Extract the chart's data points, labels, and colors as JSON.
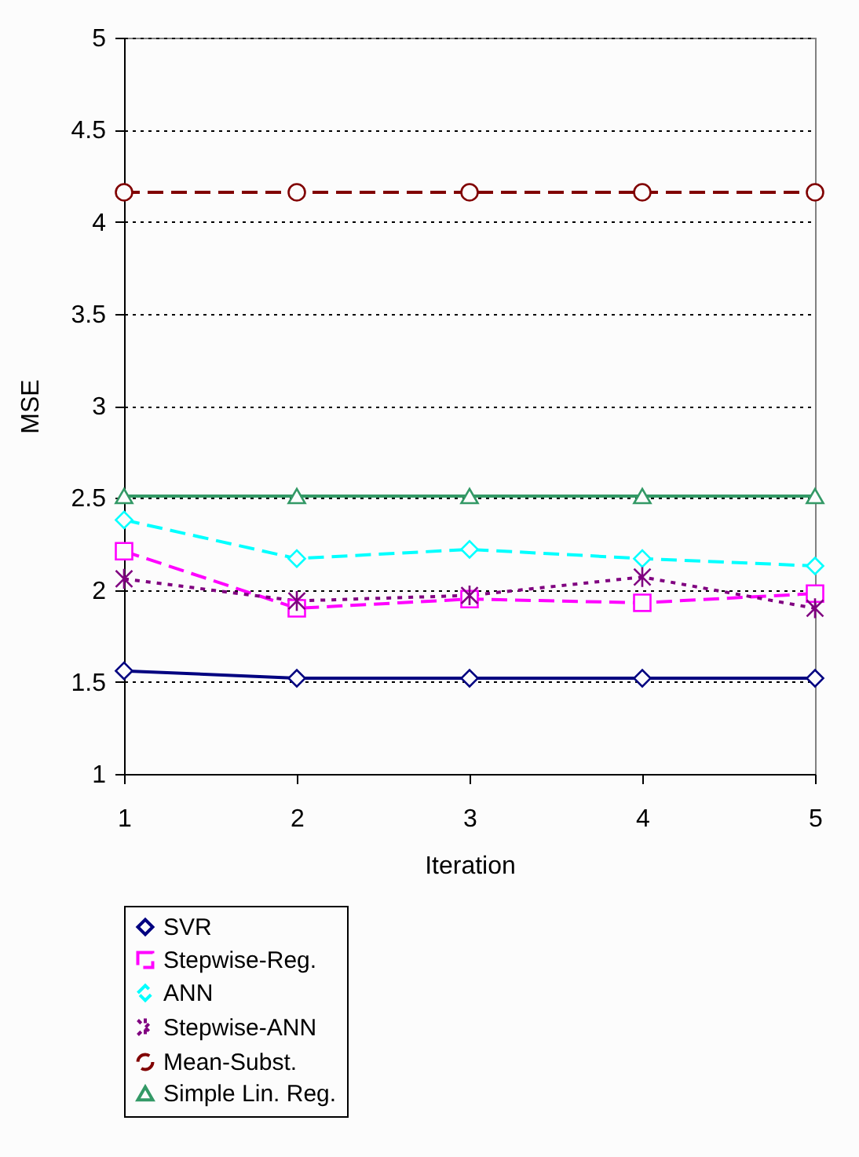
{
  "chart_data": {
    "type": "line",
    "xlabel": "Iteration",
    "ylabel": "MSE",
    "x": [
      1,
      2,
      3,
      4,
      5
    ],
    "xlim": [
      1,
      5
    ],
    "xticks": [
      1,
      2,
      3,
      4,
      5
    ],
    "ylim": [
      1,
      5
    ],
    "yticks": [
      1,
      1.5,
      2,
      2.5,
      3,
      3.5,
      4,
      4.5,
      5
    ],
    "grid": "y",
    "legend": "bottom",
    "series": [
      {
        "name": "SVR",
        "color": "#000080",
        "marker": "diamond",
        "line_style": "solid",
        "values": [
          1.56,
          1.52,
          1.52,
          1.52,
          1.52
        ]
      },
      {
        "name": "Stepwise-Reg.",
        "color": "#ff00ff",
        "marker": "square",
        "line_style": "dashed",
        "values": [
          2.21,
          1.9,
          1.95,
          1.93,
          1.98
        ]
      },
      {
        "name": "ANN",
        "color": "#00ffff",
        "marker": "diamond",
        "line_style": "dashed",
        "values": [
          2.38,
          2.17,
          2.22,
          2.17,
          2.13
        ]
      },
      {
        "name": "Stepwise-ANN",
        "color": "#800080",
        "marker": "cross",
        "line_style": "dotted",
        "values": [
          2.06,
          1.94,
          1.97,
          2.07,
          1.9
        ]
      },
      {
        "name": "Mean-Subst.",
        "color": "#800000",
        "marker": "circle",
        "line_style": "dashed",
        "values": [
          4.16,
          4.16,
          4.16,
          4.16,
          4.16
        ]
      },
      {
        "name": "Simple Lin. Reg.",
        "color": "#339966",
        "marker": "triangle",
        "line_style": "solid",
        "values": [
          2.51,
          2.51,
          2.51,
          2.51,
          2.51
        ]
      }
    ]
  }
}
